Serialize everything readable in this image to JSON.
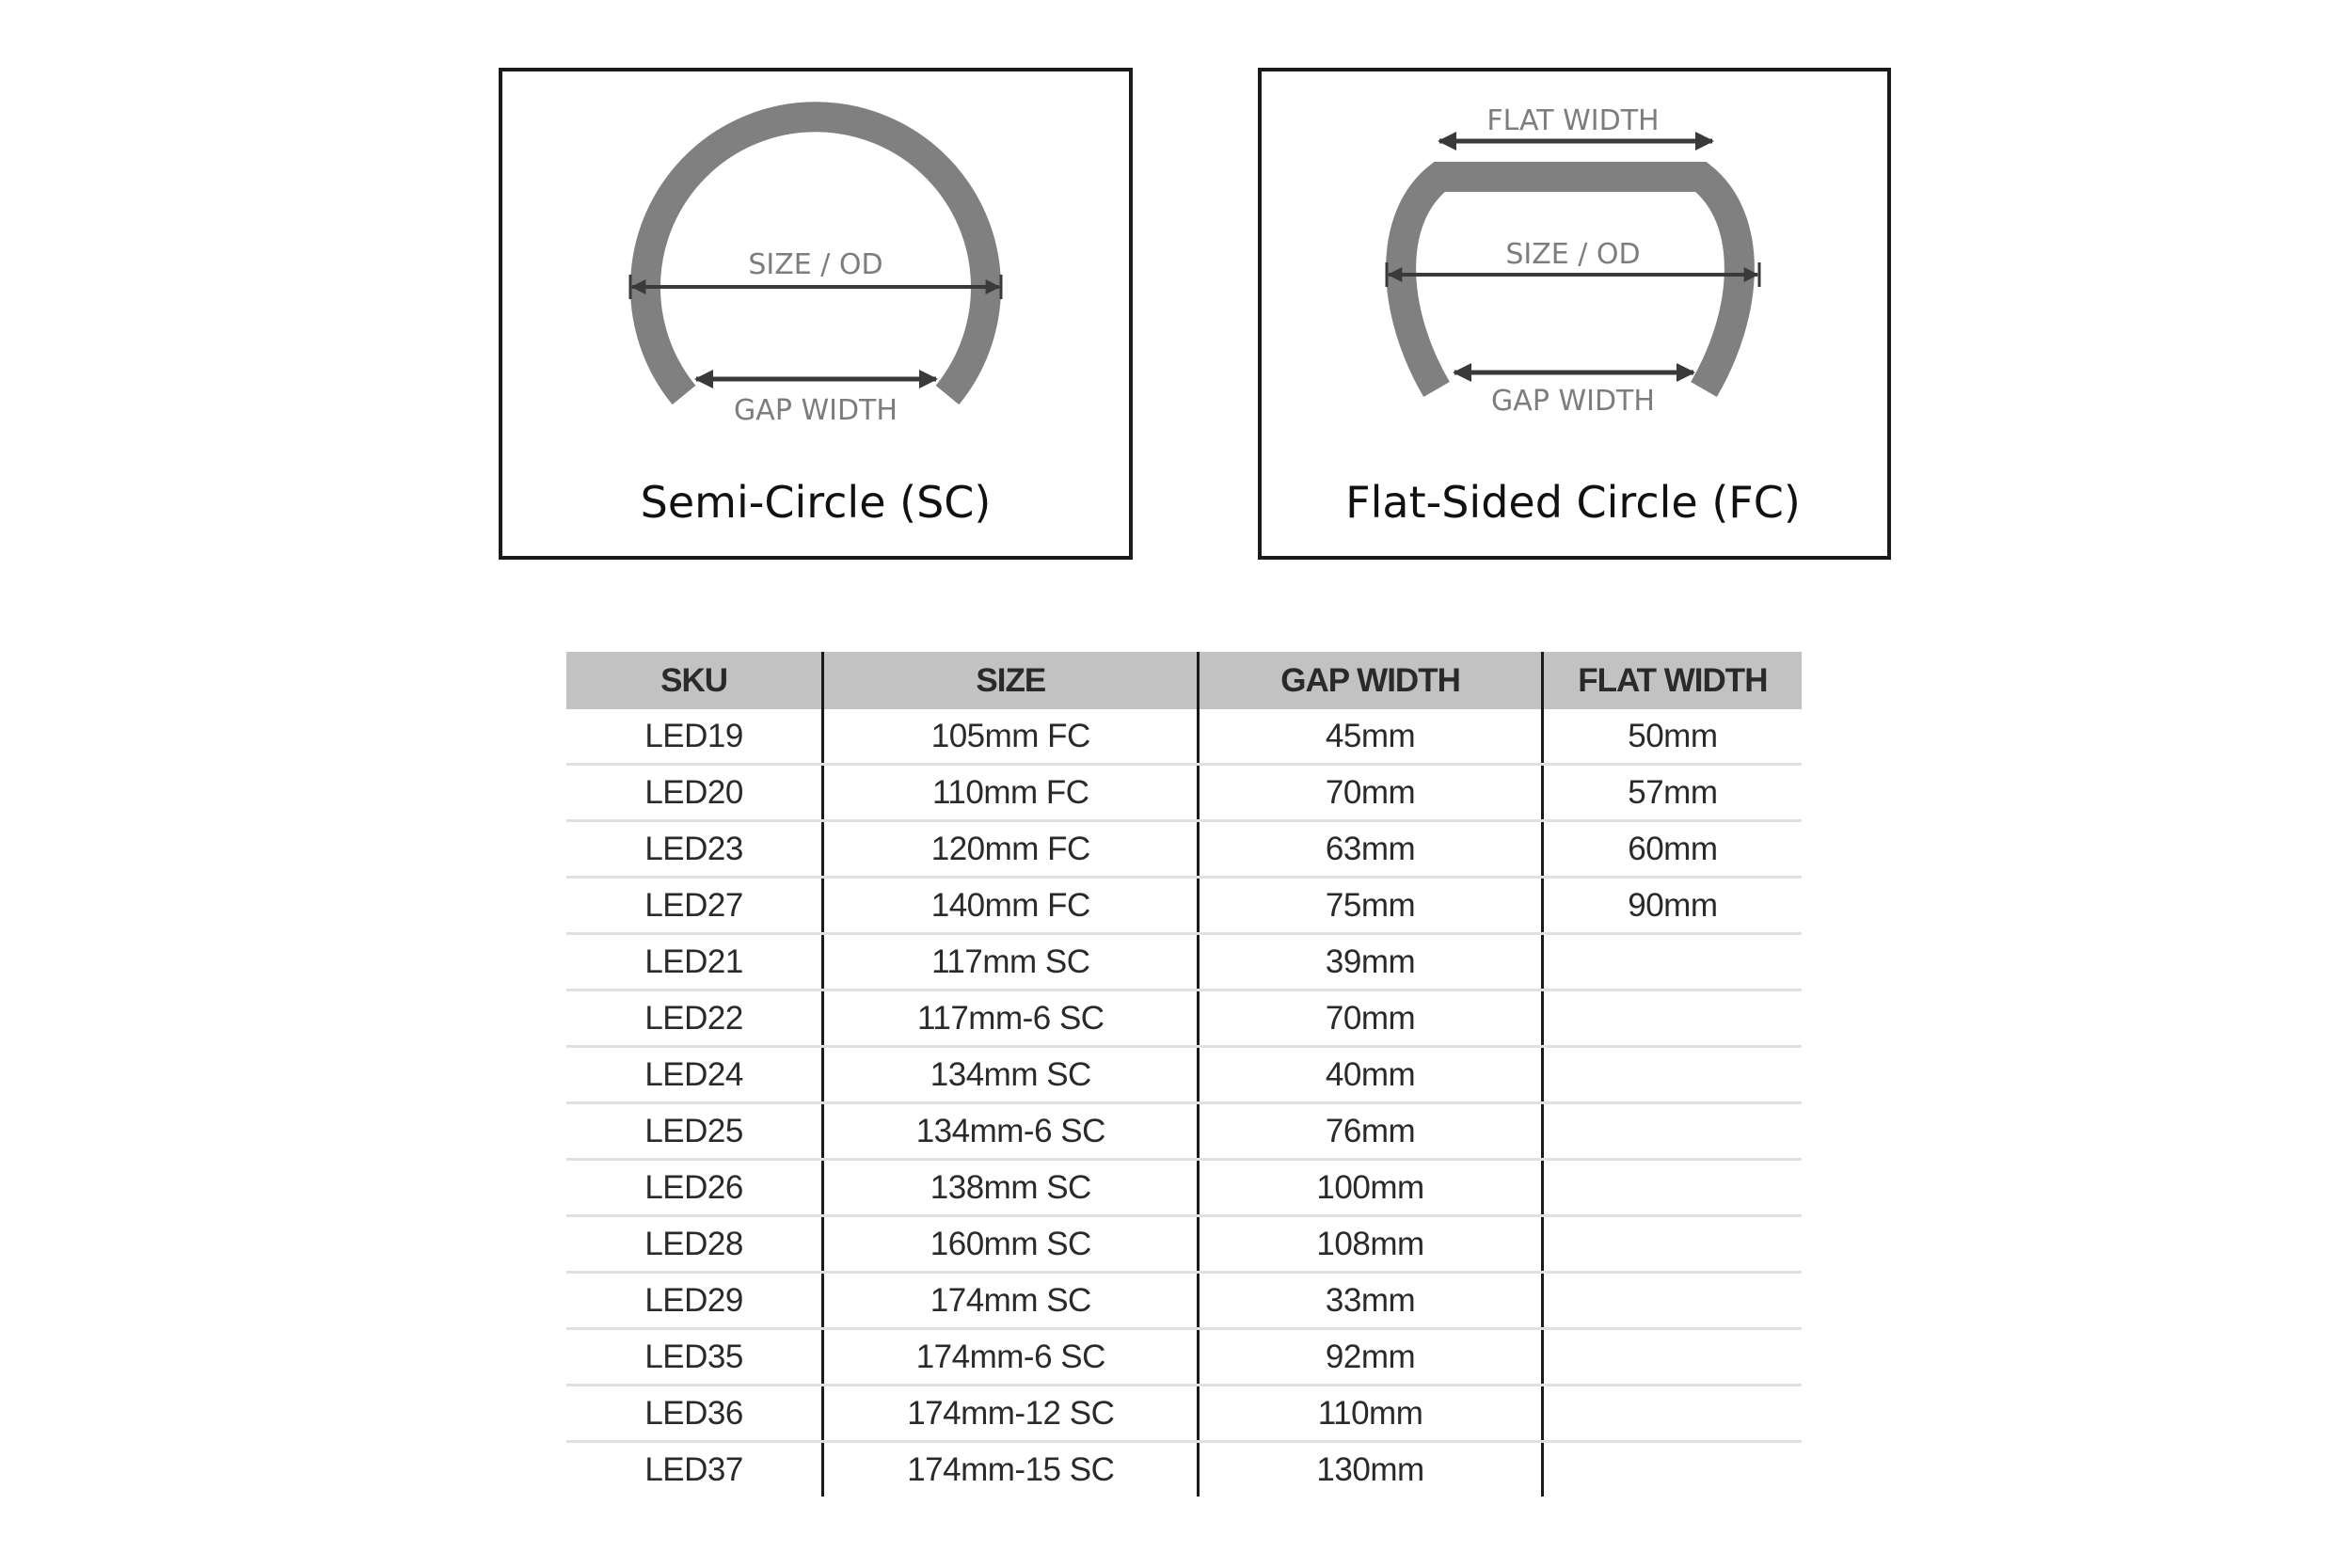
{
  "diagrams": {
    "semi_circle": {
      "size_label": "SIZE / OD",
      "gap_label": "GAP WIDTH",
      "title": "Semi-Circle (SC)"
    },
    "flat_sided": {
      "flat_label": "FLAT WIDTH",
      "size_label": "SIZE / OD",
      "gap_label": "GAP WIDTH",
      "title": "Flat-Sided Circle (FC)"
    },
    "colors": {
      "ring": "#808080",
      "arrow": "#3a3a3a",
      "label": "#7d7d7d"
    }
  },
  "table": {
    "headers": [
      "SKU",
      "SIZE",
      "GAP WIDTH",
      "FLAT WIDTH"
    ],
    "header_bg": "#c2c2c2",
    "rows": [
      [
        "LED19",
        "105mm FC",
        "45mm",
        "50mm"
      ],
      [
        "LED20",
        "110mm FC",
        "70mm",
        "57mm"
      ],
      [
        "LED23",
        "120mm FC",
        "63mm",
        "60mm"
      ],
      [
        "LED27",
        "140mm FC",
        "75mm",
        "90mm"
      ],
      [
        "LED21",
        "117mm SC",
        "39mm",
        ""
      ],
      [
        "LED22",
        "117mm-6 SC",
        "70mm",
        ""
      ],
      [
        "LED24",
        "134mm SC",
        "40mm",
        ""
      ],
      [
        "LED25",
        "134mm-6 SC",
        "76mm",
        ""
      ],
      [
        "LED26",
        "138mm SC",
        "100mm",
        ""
      ],
      [
        "LED28",
        "160mm SC",
        "108mm",
        ""
      ],
      [
        "LED29",
        "174mm SC",
        "33mm",
        ""
      ],
      [
        "LED35",
        "174mm-6 SC",
        "92mm",
        ""
      ],
      [
        "LED36",
        "174mm-12 SC",
        "110mm",
        ""
      ],
      [
        "LED37",
        "174mm-15 SC",
        "130mm",
        ""
      ]
    ]
  }
}
